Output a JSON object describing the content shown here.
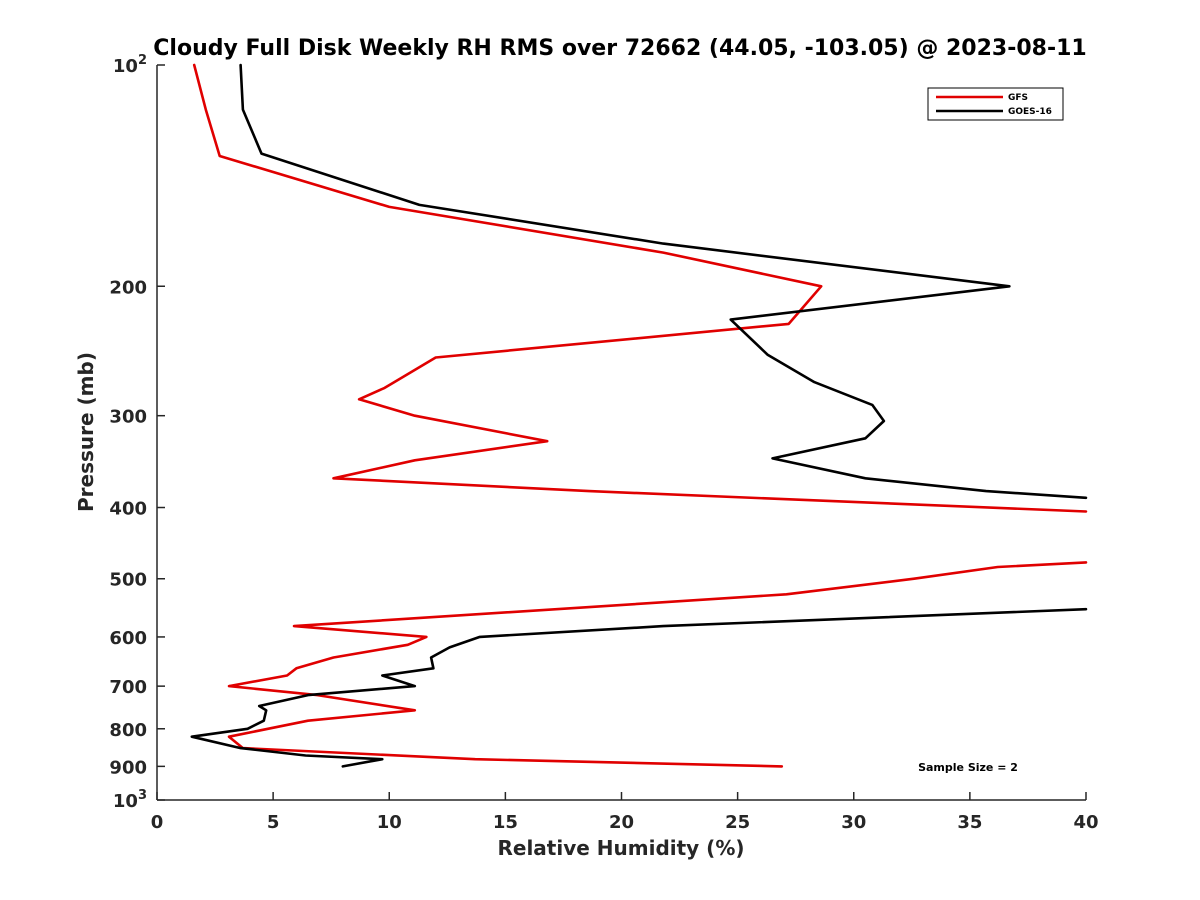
{
  "chart_data": {
    "type": "line",
    "title": "Cloudy Full Disk Weekly RH RMS over 72662 (44.05, -103.05) @ 2023-08-11",
    "xlabel": "Relative Humidity (%)",
    "ylabel": "Pressure (mb)",
    "xlim": [
      0,
      40
    ],
    "ylim": [
      100,
      1000
    ],
    "yscale": "log",
    "y_reversed": true,
    "grid": false,
    "legend_position": "top-right",
    "x_ticks": [
      "0",
      "5",
      "10",
      "15",
      "20",
      "25",
      "30",
      "35",
      "40"
    ],
    "y_ticks": [
      {
        "value": 100,
        "base": "10",
        "exp": "2"
      },
      {
        "value": 200,
        "label": "200"
      },
      {
        "value": 300,
        "label": "300"
      },
      {
        "value": 400,
        "label": "400"
      },
      {
        "value": 500,
        "label": "500"
      },
      {
        "value": 600,
        "label": "600"
      },
      {
        "value": 700,
        "label": "700"
      },
      {
        "value": 800,
        "label": "800"
      },
      {
        "value": 900,
        "label": "900"
      },
      {
        "value": 1000,
        "base": "10",
        "exp": "3"
      }
    ],
    "annotation": "Sample Size = 2",
    "series": [
      {
        "name": "GFS",
        "color": "#e00000",
        "points": [
          {
            "x": 1.6,
            "y": 100
          },
          {
            "x": 2.1,
            "y": 115
          },
          {
            "x": 2.7,
            "y": 133
          },
          {
            "x": 10.0,
            "y": 156
          },
          {
            "x": 21.8,
            "y": 180
          },
          {
            "x": 28.6,
            "y": 200
          },
          {
            "x": 27.2,
            "y": 225
          },
          {
            "x": 12.0,
            "y": 250
          },
          {
            "x": 9.8,
            "y": 275
          },
          {
            "x": 8.7,
            "y": 285
          },
          {
            "x": 11.1,
            "y": 300
          },
          {
            "x": 16.8,
            "y": 325
          },
          {
            "x": 11.1,
            "y": 345
          },
          {
            "x": 7.6,
            "y": 365
          },
          {
            "x": 18.6,
            "y": 380
          },
          {
            "x": 40,
            "y": 405
          },
          {
            "x": null,
            "y": null
          },
          {
            "x": 40,
            "y": 475
          },
          {
            "x": 36.2,
            "y": 482
          },
          {
            "x": 32.6,
            "y": 500
          },
          {
            "x": 27.1,
            "y": 525
          },
          {
            "x": 5.9,
            "y": 580
          },
          {
            "x": 11.6,
            "y": 600
          },
          {
            "x": 10.8,
            "y": 615
          },
          {
            "x": 7.6,
            "y": 640
          },
          {
            "x": 6.0,
            "y": 662
          },
          {
            "x": 5.6,
            "y": 677
          },
          {
            "x": 3.1,
            "y": 700
          },
          {
            "x": 6.9,
            "y": 720
          },
          {
            "x": 11.1,
            "y": 755
          },
          {
            "x": 6.5,
            "y": 780
          },
          {
            "x": 3.1,
            "y": 820
          },
          {
            "x": 3.7,
            "y": 850
          },
          {
            "x": 13.7,
            "y": 880
          },
          {
            "x": 26.9,
            "y": 900
          }
        ]
      },
      {
        "name": "GOES-16",
        "color": "#000000",
        "points": [
          {
            "x": 3.6,
            "y": 100
          },
          {
            "x": 3.7,
            "y": 115
          },
          {
            "x": 4.5,
            "y": 132
          },
          {
            "x": 11.3,
            "y": 155
          },
          {
            "x": 21.8,
            "y": 175
          },
          {
            "x": 36.7,
            "y": 200
          },
          {
            "x": 24.7,
            "y": 222
          },
          {
            "x": 26.3,
            "y": 248
          },
          {
            "x": 28.3,
            "y": 270
          },
          {
            "x": 30.8,
            "y": 290
          },
          {
            "x": 31.3,
            "y": 305
          },
          {
            "x": 30.5,
            "y": 322
          },
          {
            "x": 26.5,
            "y": 343
          },
          {
            "x": 30.5,
            "y": 365
          },
          {
            "x": 35.7,
            "y": 380
          },
          {
            "x": 40,
            "y": 388
          },
          {
            "x": null,
            "y": null
          },
          {
            "x": 40,
            "y": 550
          },
          {
            "x": 21.8,
            "y": 580
          },
          {
            "x": 13.9,
            "y": 600
          },
          {
            "x": 12.6,
            "y": 620
          },
          {
            "x": 11.8,
            "y": 640
          },
          {
            "x": 11.9,
            "y": 662
          },
          {
            "x": 9.7,
            "y": 677
          },
          {
            "x": 11.1,
            "y": 700
          },
          {
            "x": 6.5,
            "y": 720
          },
          {
            "x": 4.4,
            "y": 745
          },
          {
            "x": 4.7,
            "y": 755
          },
          {
            "x": 4.6,
            "y": 780
          },
          {
            "x": 3.9,
            "y": 800
          },
          {
            "x": 1.5,
            "y": 820
          },
          {
            "x": 3.6,
            "y": 850
          },
          {
            "x": 6.4,
            "y": 870
          },
          {
            "x": 9.7,
            "y": 880
          },
          {
            "x": 8.0,
            "y": 900
          }
        ]
      }
    ]
  }
}
